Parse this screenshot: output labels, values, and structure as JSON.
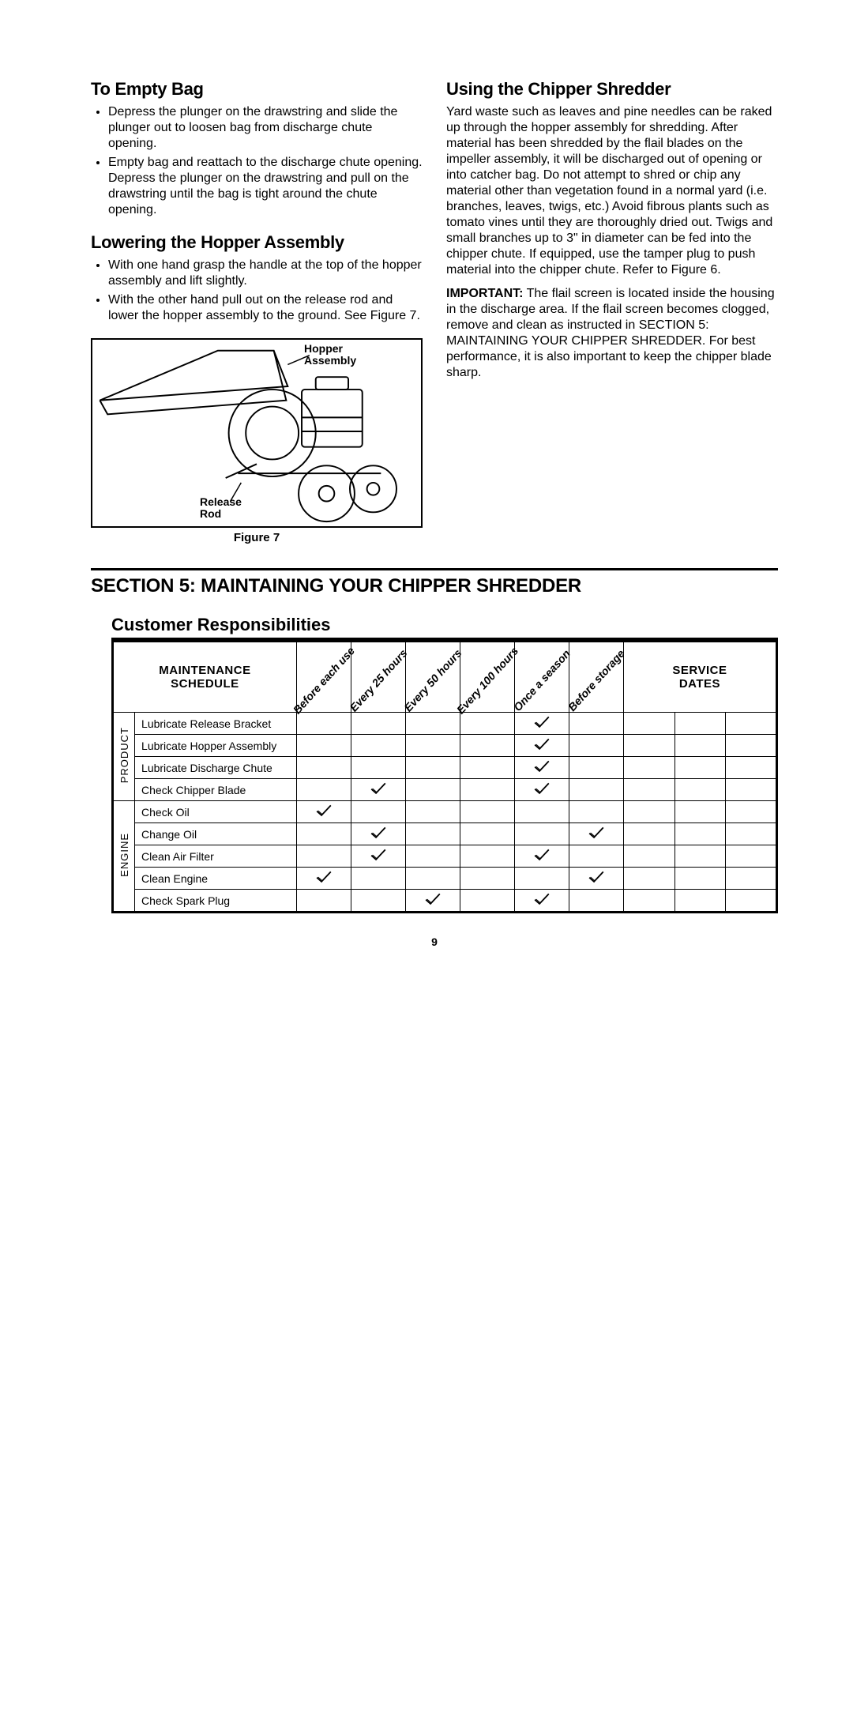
{
  "left_column": {
    "empty_bag": {
      "heading": "To Empty Bag",
      "bullets": [
        "Depress the plunger on the drawstring and slide the plunger out to loosen bag from discharge chute opening.",
        "Empty bag and reattach to the discharge chute opening. Depress the plunger on the drawstring and pull on the drawstring until the bag is tight around the chute opening."
      ]
    },
    "lowering_hopper": {
      "heading": "Lowering the Hopper Assembly",
      "bullets": [
        "With one hand grasp the handle at the top of the hopper assembly and lift slightly.",
        "With the other hand pull out on the release rod and lower the hopper assembly to the ground. See Figure 7."
      ],
      "figure": {
        "caption": "Figure 7",
        "label_hopper": "Hopper\nAssembly",
        "label_release": "Release\nRod"
      }
    }
  },
  "right_column": {
    "using_cs": {
      "heading": "Using the Chipper Shredder",
      "para1": "Yard waste such as leaves and pine needles can be raked up through the hopper assembly for shredding. After material has been shredded by the flail blades on the impeller assembly, it will be discharged out of opening or into catcher bag. Do not attempt to shred or chip any material other than vegetation found in a normal yard (i.e. branches, leaves, twigs, etc.) Avoid fibrous plants such as tomato vines until they are thoroughly dried out. Twigs and small branches up to 3\" in diameter can be fed into the chipper chute. If equipped, use the tamper plug to push material into the chipper chute. Refer to Figure 6.",
      "important_label": "IMPORTANT:",
      "important_text": " The flail screen is located inside the housing in the discharge area. If the flail screen becomes clogged, remove and clean as instructed in SECTION 5: MAINTAINING YOUR CHIPPER SHREDDER. For best performance, it is also important to keep the chipper blade sharp."
    }
  },
  "section5": {
    "title": "SECTION 5:  MAINTAINING YOUR CHIPPER SHREDDER",
    "subheading": "Customer Responsibilities"
  },
  "maintenance_table": {
    "header_schedule": "MAINTENANCE SCHEDULE",
    "header_service": "SERVICE DATES",
    "diagonal_headers": [
      "Before each use",
      "Every 25 hours",
      "Every 50 hours",
      "Every 100 hours",
      "Once a season",
      "Before storage"
    ],
    "categories": [
      {
        "label": "PRODUCT",
        "rows": [
          {
            "task": "Lubricate Release Bracket",
            "checks": [
              false,
              false,
              false,
              false,
              true,
              false
            ]
          },
          {
            "task": "Lubricate Hopper Assembly",
            "checks": [
              false,
              false,
              false,
              false,
              true,
              false
            ]
          },
          {
            "task": "Lubricate Discharge Chute",
            "checks": [
              false,
              false,
              false,
              false,
              true,
              false
            ]
          },
          {
            "task": "Check Chipper Blade",
            "checks": [
              false,
              true,
              false,
              false,
              true,
              false
            ]
          }
        ]
      },
      {
        "label": "ENGINE",
        "rows": [
          {
            "task": "Check Oil",
            "checks": [
              true,
              false,
              false,
              false,
              false,
              false
            ]
          },
          {
            "task": "Change Oil",
            "checks": [
              false,
              true,
              false,
              false,
              false,
              true
            ]
          },
          {
            "task": "Clean Air Filter",
            "checks": [
              false,
              true,
              false,
              false,
              true,
              false
            ]
          },
          {
            "task": "Clean Engine",
            "checks": [
              true,
              false,
              false,
              false,
              false,
              true
            ]
          },
          {
            "task": "Check Spark Plug",
            "checks": [
              false,
              false,
              true,
              false,
              true,
              false
            ]
          }
        ]
      }
    ],
    "service_date_cols": 3
  },
  "page_number": "9",
  "colors": {
    "text": "#000000",
    "bg": "#ffffff",
    "border": "#000000"
  }
}
